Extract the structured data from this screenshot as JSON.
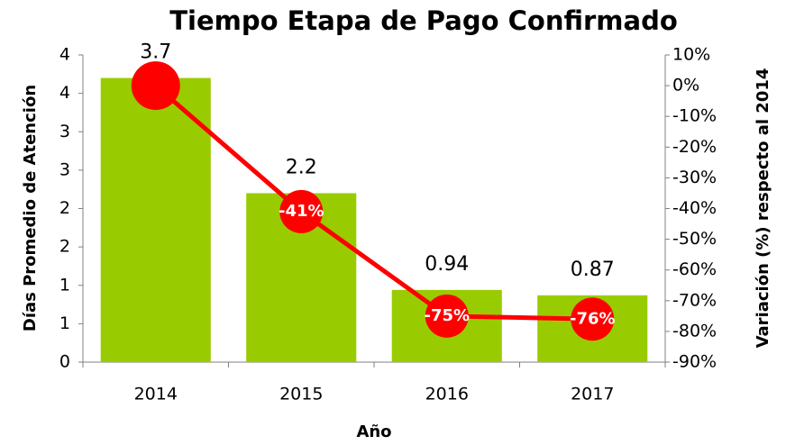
{
  "chart_data": {
    "type": "bar",
    "title": "Tiempo Etapa de Pago Confirmado",
    "x_label": "Año",
    "y_label": "Días Promedio de Atención",
    "y2_label": "Variación (%) respecto al 2014",
    "categories": [
      "2014",
      "2015",
      "2016",
      "2017"
    ],
    "series": [
      {
        "type": "bar",
        "color": "#99cc00",
        "values": [
          3.7,
          2.2,
          0.94,
          0.87
        ]
      },
      {
        "type": "line",
        "axis": "y2",
        "color": "#ff0000",
        "values": [
          0,
          -41,
          -75,
          -76
        ],
        "value_labels": [
          null,
          "-41%",
          "-75%",
          "-76%"
        ]
      }
    ],
    "ylim": [
      0,
      4
    ],
    "yticks": [
      0,
      {
        "value": 0.5,
        "label": "1"
      },
      1,
      {
        "value": 1.5,
        "label": "2"
      },
      2,
      {
        "value": 2.5,
        "label": "3"
      },
      3,
      {
        "value": 3.5,
        "label": "4"
      },
      4
    ],
    "y2lim": [
      -90,
      10
    ],
    "y2ticks": [
      {
        "value": 10,
        "label": "10%"
      },
      {
        "value": 0,
        "label": "0%"
      },
      {
        "value": -10,
        "label": "-10%"
      },
      {
        "value": -20,
        "label": "-20%"
      },
      {
        "value": -30,
        "label": "-30%"
      },
      {
        "value": -40,
        "label": "-40%"
      },
      {
        "value": -50,
        "label": "-50%"
      },
      {
        "value": -60,
        "label": "-60%"
      },
      {
        "value": -70,
        "label": "-70%"
      },
      {
        "value": -80,
        "label": "-80%"
      },
      {
        "value": -90,
        "label": "-90%"
      }
    ],
    "grid": false
  }
}
